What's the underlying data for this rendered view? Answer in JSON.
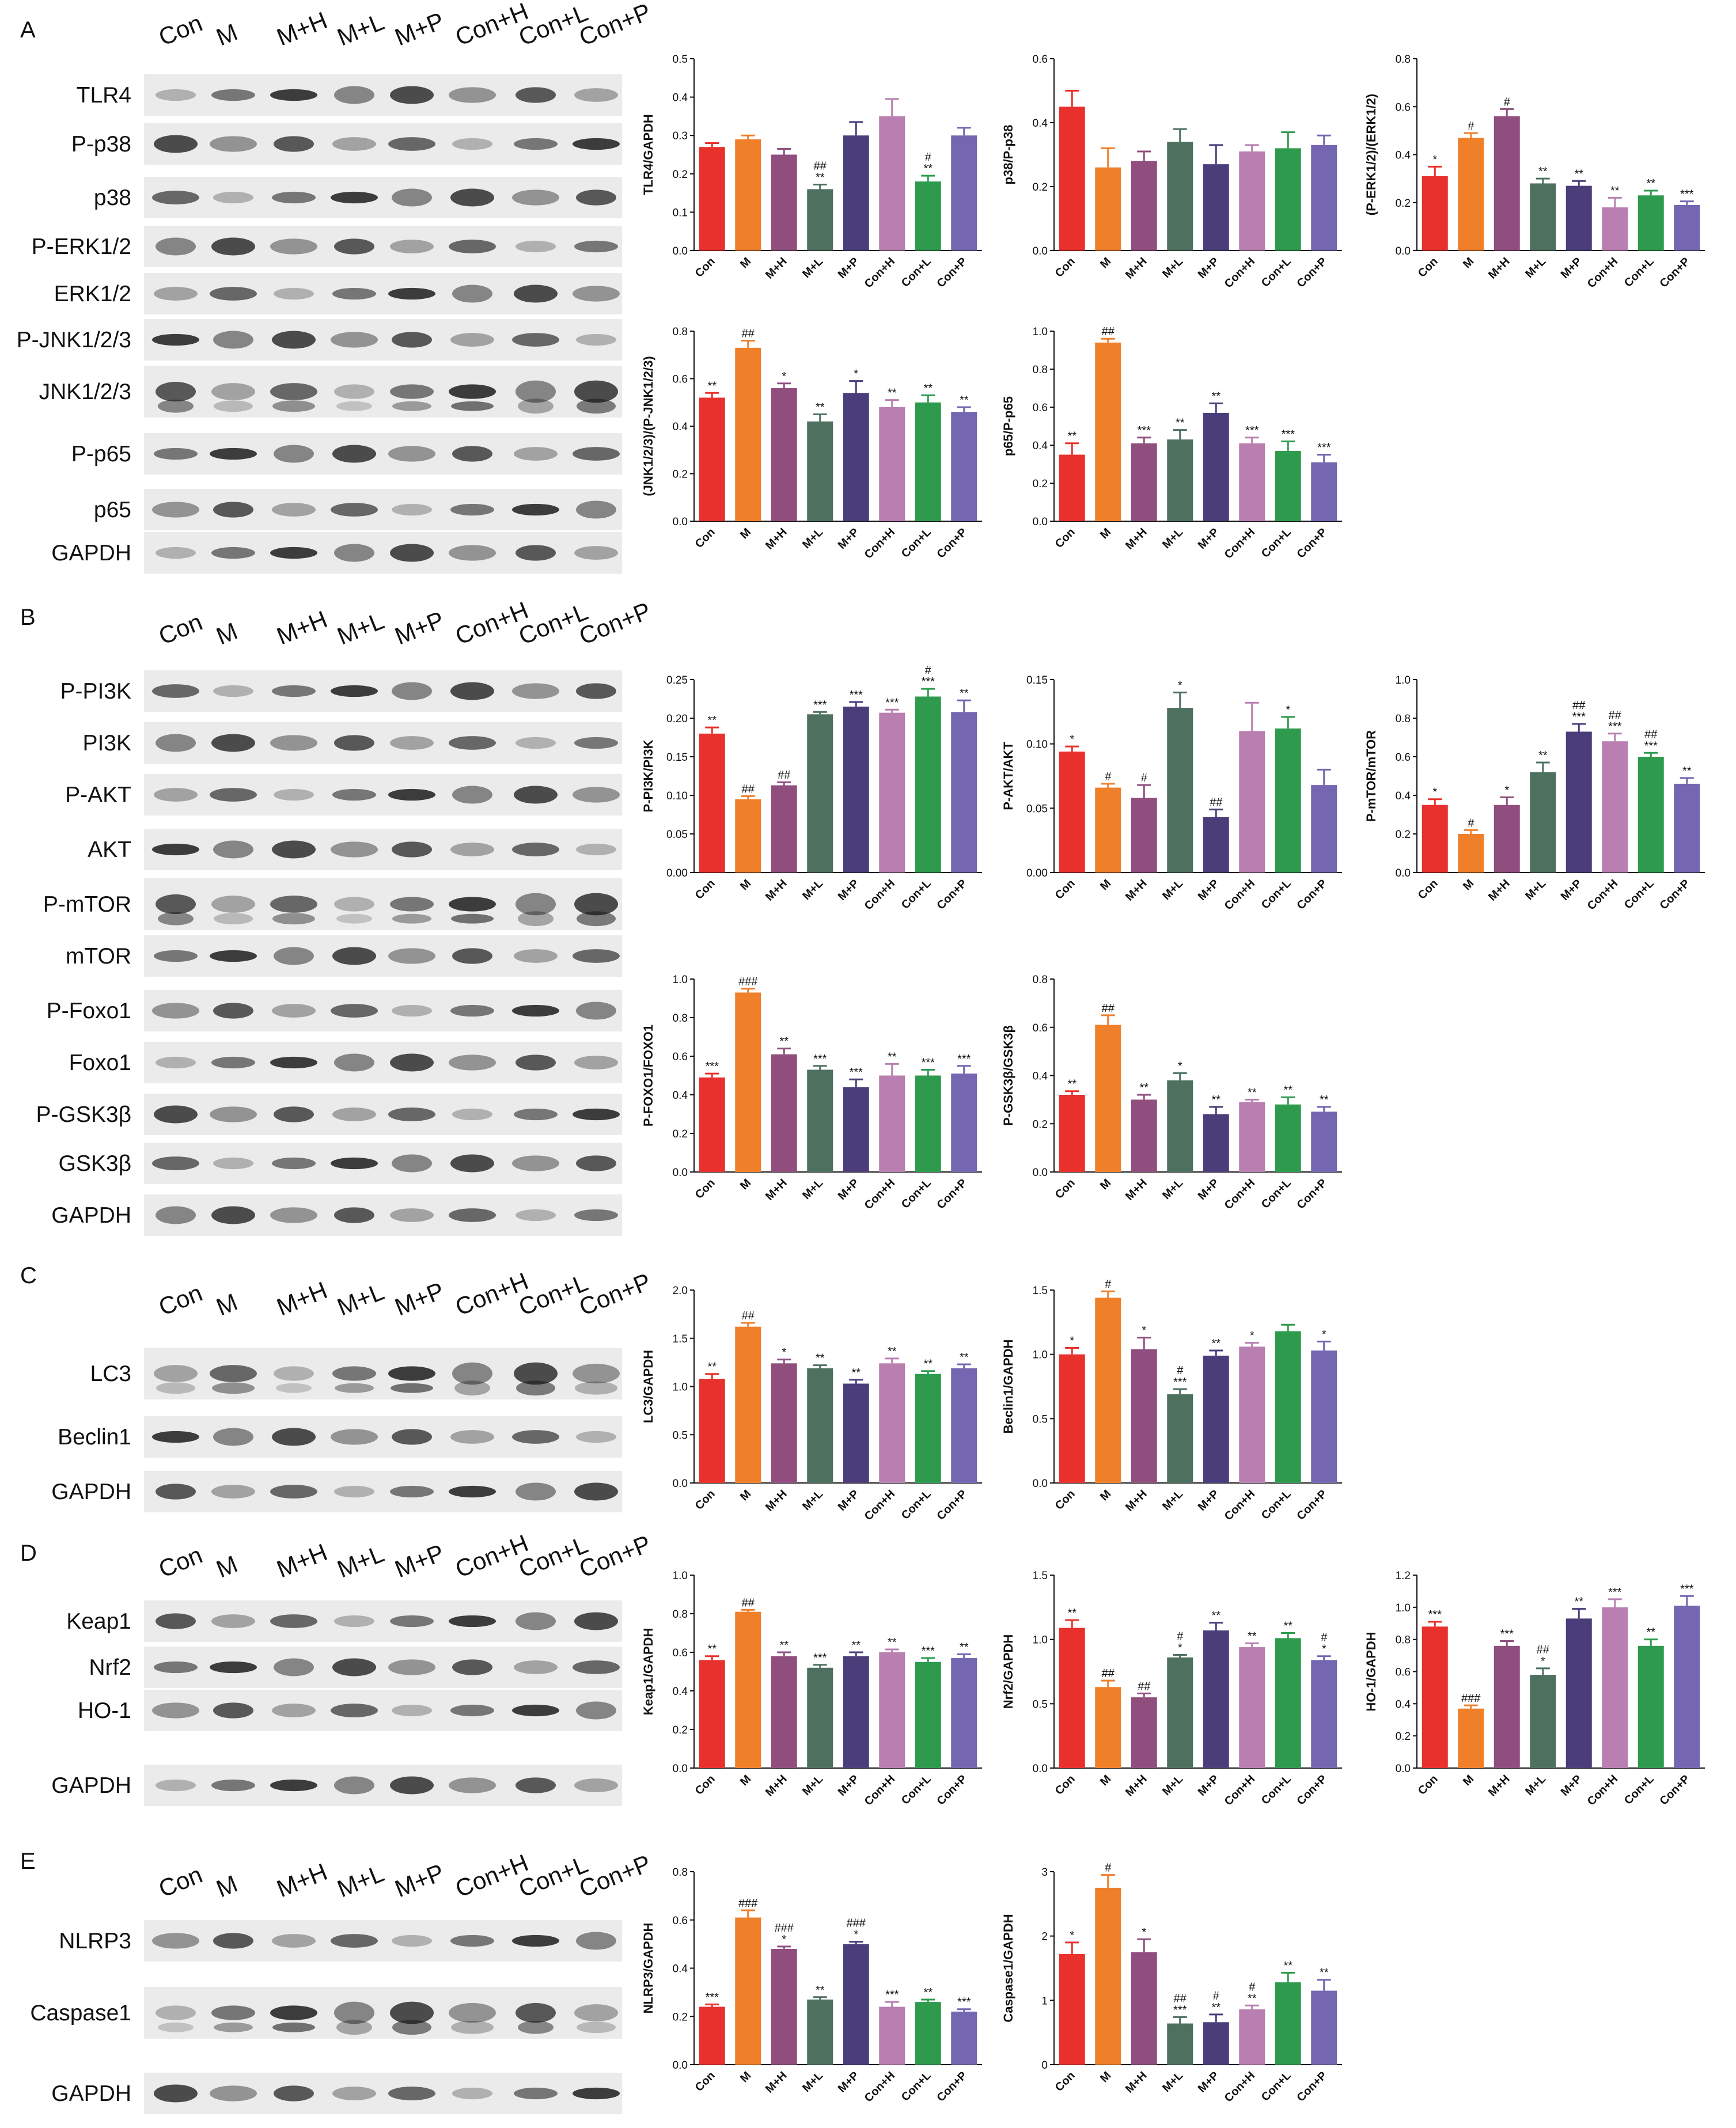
{
  "lanes": [
    "Con",
    "M",
    "M+H",
    "M+L",
    "M+P",
    "Con+H",
    "Con+L",
    "Con+P"
  ],
  "colors": [
    "#e8302c",
    "#f07f2a",
    "#8f4e7d",
    "#4d705f",
    "#4a3d7a",
    "#b87fb0",
    "#2e9a4e",
    "#7466b0"
  ],
  "panels": [
    {
      "label": "A",
      "blots": [
        "TLR4",
        "P-p38",
        "p38",
        "P-ERK1/2",
        "ERK1/2",
        "P-JNK1/2/3",
        "JNK1/2/3",
        "P-p65",
        "p65",
        "GAPDH"
      ]
    },
    {
      "label": "B",
      "blots": [
        "P-PI3K",
        "PI3K",
        "P-AKT",
        "AKT",
        "P-mTOR",
        "mTOR",
        "P-Foxo1",
        "Foxo1",
        "P-GSK3β",
        "GSK3β",
        "GAPDH"
      ]
    },
    {
      "label": "C",
      "blots": [
        "LC3",
        "Beclin1",
        "GAPDH"
      ]
    },
    {
      "label": "D",
      "blots": [
        "Keap1",
        "Nrf2",
        "HO-1",
        "GAPDH"
      ]
    },
    {
      "label": "E",
      "blots": [
        "NLRP3",
        "Caspase1",
        "GAPDH"
      ]
    }
  ],
  "chart_data": [
    {
      "type": "bar",
      "ylabel": "TLR4/GAPDH",
      "ylim": [
        0,
        0.5
      ],
      "yticks": [
        "0.0",
        "0.1",
        "0.2",
        "0.3",
        "0.4",
        "0.5"
      ],
      "categories": [
        "Con",
        "M",
        "M+H",
        "M+L",
        "M+P",
        "Con+H",
        "Con+L",
        "Con+P"
      ],
      "values": [
        0.27,
        0.29,
        0.25,
        0.16,
        0.3,
        0.35,
        0.18,
        0.3
      ],
      "errors": [
        0.01,
        0.01,
        0.015,
        0.012,
        0.035,
        0.045,
        0.015,
        0.02
      ],
      "annotations": [
        "",
        "",
        "",
        "##\n**",
        "",
        "",
        "#\n**",
        ""
      ]
    },
    {
      "type": "bar",
      "ylabel": "p38/P-p38",
      "ylim": [
        0,
        0.6
      ],
      "yticks": [
        "0.0",
        "0.2",
        "0.4",
        "0.6"
      ],
      "categories": [
        "Con",
        "M",
        "M+H",
        "M+L",
        "M+P",
        "Con+H",
        "Con+L",
        "Con+P"
      ],
      "values": [
        0.45,
        0.26,
        0.28,
        0.34,
        0.27,
        0.31,
        0.32,
        0.33
      ],
      "errors": [
        0.05,
        0.06,
        0.03,
        0.04,
        0.06,
        0.02,
        0.05,
        0.03
      ],
      "annotations": [
        "",
        "",
        "",
        "",
        "",
        "",
        "",
        ""
      ]
    },
    {
      "type": "bar",
      "ylabel": "(P-ERK1/2)/(ERK1/2)",
      "ylim": [
        0,
        0.8
      ],
      "yticks": [
        "0.0",
        "0.2",
        "0.4",
        "0.6",
        "0.8"
      ],
      "categories": [
        "Con",
        "M",
        "M+H",
        "M+L",
        "M+P",
        "Con+H",
        "Con+L",
        "Con+P"
      ],
      "values": [
        0.31,
        0.47,
        0.56,
        0.28,
        0.27,
        0.18,
        0.23,
        0.19
      ],
      "errors": [
        0.04,
        0.02,
        0.03,
        0.02,
        0.02,
        0.04,
        0.02,
        0.015
      ],
      "annotations": [
        "*",
        "#",
        "#",
        "**",
        "**",
        "**",
        "**",
        "***"
      ]
    },
    {
      "type": "bar",
      "ylabel": "(JNK1/2/3)/(P-JNK1/2/3)",
      "ylim": [
        0,
        0.8
      ],
      "yticks": [
        "0.0",
        "0.2",
        "0.4",
        "0.6",
        "0.8"
      ],
      "categories": [
        "Con",
        "M",
        "M+H",
        "M+L",
        "M+P",
        "Con+H",
        "Con+L",
        "Con+P"
      ],
      "values": [
        0.52,
        0.73,
        0.56,
        0.42,
        0.54,
        0.48,
        0.5,
        0.46
      ],
      "errors": [
        0.02,
        0.03,
        0.02,
        0.03,
        0.05,
        0.03,
        0.03,
        0.02
      ],
      "annotations": [
        "**",
        "##",
        "*",
        "**",
        "*",
        "**",
        "**",
        "**"
      ]
    },
    {
      "type": "bar",
      "ylabel": "p65/P-p65",
      "ylim": [
        0,
        1.0
      ],
      "yticks": [
        "0.0",
        "0.2",
        "0.4",
        "0.6",
        "0.8",
        "1.0"
      ],
      "categories": [
        "Con",
        "M",
        "M+H",
        "M+L",
        "M+P",
        "Con+H",
        "Con+L",
        "Con+P"
      ],
      "values": [
        0.35,
        0.94,
        0.41,
        0.43,
        0.57,
        0.41,
        0.37,
        0.31
      ],
      "errors": [
        0.06,
        0.02,
        0.03,
        0.05,
        0.05,
        0.03,
        0.05,
        0.04
      ],
      "annotations": [
        "**",
        "##",
        "***",
        "**",
        "**",
        "***",
        "***",
        "***"
      ]
    },
    {
      "type": "bar",
      "ylabel": "P-PI3K/PI3K",
      "ylim": [
        0,
        0.25
      ],
      "yticks": [
        "0.00",
        "0.05",
        "0.10",
        "0.15",
        "0.20",
        "0.25"
      ],
      "categories": [
        "Con",
        "M",
        "M+H",
        "M+L",
        "M+P",
        "Con+H",
        "Con+L",
        "Con+P"
      ],
      "values": [
        0.18,
        0.095,
        0.113,
        0.205,
        0.215,
        0.207,
        0.228,
        0.208
      ],
      "errors": [
        0.008,
        0.004,
        0.004,
        0.003,
        0.006,
        0.004,
        0.01,
        0.015
      ],
      "annotations": [
        "**",
        "##",
        "##",
        "***",
        "***",
        "***",
        "#\n***",
        "**"
      ]
    },
    {
      "type": "bar",
      "ylabel": "P-AKT/AKT",
      "ylim": [
        0,
        0.15
      ],
      "yticks": [
        "0.00",
        "0.05",
        "0.10",
        "0.15"
      ],
      "categories": [
        "Con",
        "M",
        "M+H",
        "M+L",
        "M+P",
        "Con+H",
        "Con+L",
        "Con+P"
      ],
      "values": [
        0.094,
        0.066,
        0.058,
        0.128,
        0.043,
        0.11,
        0.112,
        0.068
      ],
      "errors": [
        0.004,
        0.003,
        0.01,
        0.012,
        0.006,
        0.022,
        0.009,
        0.012
      ],
      "annotations": [
        "*",
        "#",
        "#",
        "*",
        "##",
        "",
        "*",
        ""
      ]
    },
    {
      "type": "bar",
      "ylabel": "P-mTOR/mTOR",
      "ylim": [
        0,
        1.0
      ],
      "yticks": [
        "0.0",
        "0.2",
        "0.4",
        "0.6",
        "0.8",
        "1.0"
      ],
      "categories": [
        "Con",
        "M",
        "M+H",
        "M+L",
        "M+P",
        "Con+H",
        "Con+L",
        "Con+P"
      ],
      "values": [
        0.35,
        0.2,
        0.35,
        0.52,
        0.73,
        0.68,
        0.6,
        0.46
      ],
      "errors": [
        0.03,
        0.02,
        0.04,
        0.05,
        0.04,
        0.04,
        0.02,
        0.03
      ],
      "annotations": [
        "*",
        "#",
        "*",
        "**",
        "##\n***",
        "##\n***",
        "##\n***",
        "**"
      ]
    },
    {
      "type": "bar",
      "ylabel": "P-FOXO1/FOXO1",
      "ylim": [
        0,
        1.0
      ],
      "yticks": [
        "0.0",
        "0.2",
        "0.4",
        "0.6",
        "0.8",
        "1.0"
      ],
      "categories": [
        "Con",
        "M",
        "M+H",
        "M+L",
        "M+P",
        "Con+H",
        "Con+L",
        "Con+P"
      ],
      "values": [
        0.49,
        0.93,
        0.61,
        0.53,
        0.44,
        0.5,
        0.5,
        0.51
      ],
      "errors": [
        0.02,
        0.02,
        0.03,
        0.02,
        0.04,
        0.06,
        0.03,
        0.04
      ],
      "annotations": [
        "***",
        "###",
        "**",
        "***",
        "***",
        "**",
        "***",
        "***"
      ]
    },
    {
      "type": "bar",
      "ylabel": "P-GSK3β/GSK3β",
      "ylim": [
        0,
        0.8
      ],
      "yticks": [
        "0.0",
        "0.2",
        "0.4",
        "0.6",
        "0.8"
      ],
      "categories": [
        "Con",
        "M",
        "M+H",
        "M+L",
        "M+P",
        "Con+H",
        "Con+L",
        "Con+P"
      ],
      "values": [
        0.32,
        0.61,
        0.3,
        0.38,
        0.24,
        0.29,
        0.28,
        0.25
      ],
      "errors": [
        0.015,
        0.04,
        0.02,
        0.03,
        0.03,
        0.01,
        0.03,
        0.02
      ],
      "annotations": [
        "**",
        "##",
        "**",
        "*",
        "**",
        "**",
        "**",
        "**"
      ]
    },
    {
      "type": "bar",
      "ylabel": "LC3/GAPDH",
      "ylim": [
        0,
        2.0
      ],
      "yticks": [
        "0.0",
        "0.5",
        "1.0",
        "1.5",
        "2.0"
      ],
      "categories": [
        "Con",
        "M",
        "M+H",
        "M+L",
        "M+P",
        "Con+H",
        "Con+L",
        "Con+P"
      ],
      "values": [
        1.08,
        1.62,
        1.24,
        1.19,
        1.03,
        1.24,
        1.13,
        1.19
      ],
      "errors": [
        0.05,
        0.04,
        0.04,
        0.03,
        0.04,
        0.05,
        0.03,
        0.04
      ],
      "annotations": [
        "**",
        "##",
        "*",
        "**",
        "**",
        "**",
        "**",
        "**"
      ]
    },
    {
      "type": "bar",
      "ylabel": "Beclin1/GAPDH",
      "ylim": [
        0,
        1.5
      ],
      "yticks": [
        "0.0",
        "0.5",
        "1.0",
        "1.5"
      ],
      "categories": [
        "Con",
        "M",
        "M+H",
        "M+L",
        "M+P",
        "Con+H",
        "Con+L",
        "Con+P"
      ],
      "values": [
        1.0,
        1.44,
        1.04,
        0.69,
        0.99,
        1.06,
        1.18,
        1.03
      ],
      "errors": [
        0.05,
        0.05,
        0.09,
        0.04,
        0.04,
        0.03,
        0.05,
        0.07
      ],
      "annotations": [
        "*",
        "#",
        "*",
        "#\n***",
        "**",
        "*",
        "",
        "*"
      ]
    },
    {
      "type": "bar",
      "ylabel": "Keap1/GAPDH",
      "ylim": [
        0,
        1.0
      ],
      "yticks": [
        "0.0",
        "0.2",
        "0.4",
        "0.6",
        "0.8",
        "1.0"
      ],
      "categories": [
        "Con",
        "M",
        "M+H",
        "M+L",
        "M+P",
        "Con+H",
        "Con+L",
        "Con+P"
      ],
      "values": [
        0.56,
        0.81,
        0.58,
        0.52,
        0.58,
        0.6,
        0.55,
        0.57
      ],
      "errors": [
        0.02,
        0.01,
        0.02,
        0.015,
        0.02,
        0.015,
        0.02,
        0.02
      ],
      "annotations": [
        "**",
        "##",
        "**",
        "***",
        "**",
        "**",
        "***",
        "**"
      ]
    },
    {
      "type": "bar",
      "ylabel": "Nrf2/GAPDH",
      "ylim": [
        0,
        1.5
      ],
      "yticks": [
        "0.0",
        "0.5",
        "1.0",
        "1.5"
      ],
      "categories": [
        "Con",
        "M",
        "M+H",
        "M+L",
        "M+P",
        "Con+H",
        "Con+L",
        "Con+P"
      ],
      "values": [
        1.09,
        0.63,
        0.55,
        0.86,
        1.07,
        0.94,
        1.01,
        0.84
      ],
      "errors": [
        0.06,
        0.05,
        0.03,
        0.02,
        0.06,
        0.03,
        0.04,
        0.03
      ],
      "annotations": [
        "**",
        "##",
        "##",
        "#\n*",
        "**",
        "**",
        "**",
        "#\n*"
      ]
    },
    {
      "type": "bar",
      "ylabel": "HO-1/GAPDH",
      "ylim": [
        0,
        1.2
      ],
      "yticks": [
        "0.0",
        "0.2",
        "0.4",
        "0.6",
        "0.8",
        "1.0",
        "1.2"
      ],
      "categories": [
        "Con",
        "M",
        "M+H",
        "M+L",
        "M+P",
        "Con+H",
        "Con+L",
        "Con+P"
      ],
      "values": [
        0.88,
        0.37,
        0.76,
        0.58,
        0.93,
        1.0,
        0.76,
        1.01
      ],
      "errors": [
        0.03,
        0.02,
        0.03,
        0.04,
        0.06,
        0.05,
        0.04,
        0.06
      ],
      "annotations": [
        "***",
        "###",
        "***",
        "##\n*",
        "**",
        "***",
        "**",
        "***"
      ]
    },
    {
      "type": "bar",
      "ylabel": "NLRP3/GAPDH",
      "ylim": [
        0,
        0.8
      ],
      "yticks": [
        "0.0",
        "0.2",
        "0.4",
        "0.6",
        "0.8"
      ],
      "categories": [
        "Con",
        "M",
        "M+H",
        "M+L",
        "M+P",
        "Con+H",
        "Con+L",
        "Con+P"
      ],
      "values": [
        0.24,
        0.61,
        0.48,
        0.27,
        0.5,
        0.24,
        0.26,
        0.22
      ],
      "errors": [
        0.01,
        0.03,
        0.01,
        0.01,
        0.01,
        0.02,
        0.01,
        0.01
      ],
      "annotations": [
        "***",
        "###",
        "###\n*",
        "**",
        "###\n*",
        "***",
        "**",
        "***"
      ]
    },
    {
      "type": "bar",
      "ylabel": "Caspase1/GAPDH",
      "ylim": [
        0,
        3
      ],
      "yticks": [
        "0",
        "1",
        "2",
        "3"
      ],
      "categories": [
        "Con",
        "M",
        "M+H",
        "M+L",
        "M+P",
        "Con+H",
        "Con+L",
        "Con+P"
      ],
      "values": [
        1.72,
        2.75,
        1.75,
        0.64,
        0.66,
        0.86,
        1.28,
        1.15
      ],
      "errors": [
        0.18,
        0.2,
        0.2,
        0.1,
        0.12,
        0.06,
        0.15,
        0.17
      ],
      "annotations": [
        "*",
        "#",
        "*",
        "##\n***",
        "#\n**",
        "#\n**",
        "**",
        "**"
      ]
    }
  ]
}
